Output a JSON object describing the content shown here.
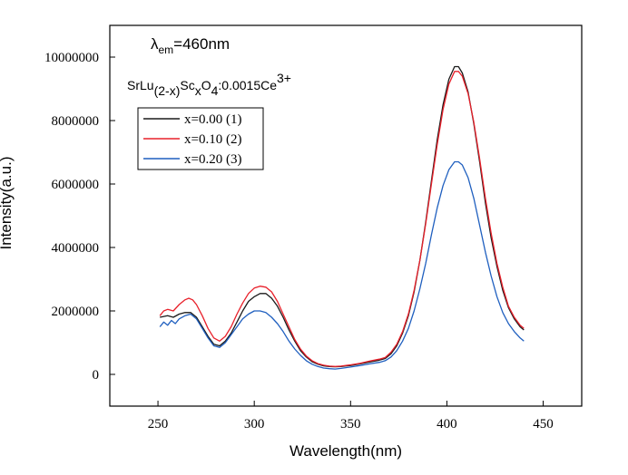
{
  "chart_data": {
    "type": "line",
    "title": "",
    "xlabel": "Wavelength(nm)",
    "ylabel": "Intensity(a.u.)",
    "xlim": [
      225,
      470
    ],
    "ylim": [
      -1000000,
      11000000
    ],
    "x_ticks": [
      250,
      300,
      350,
      400,
      450
    ],
    "y_ticks": [
      0,
      2000000,
      4000000,
      6000000,
      8000000,
      10000000
    ],
    "x_tick_labels": [
      "250",
      "300",
      "350",
      "400",
      "450"
    ],
    "y_tick_labels": [
      "0",
      "2000000",
      "4000000",
      "6000000",
      "8000000",
      "10000000"
    ],
    "grid": false,
    "legend_position": "top-left",
    "annotations": {
      "excitation": {
        "lambda": "λ",
        "sub": "em",
        "rest": "=460nm"
      },
      "formula": {
        "base": "SrLu",
        "sub1": "(2-x)",
        "sc": "Sc",
        "sub2": "x",
        "o": "O",
        "sub3": "4",
        "rest": ":0.0015Ce",
        "sup": "3+"
      }
    },
    "series": [
      {
        "name": "x=0.00 (1)",
        "color": "#1a1a1a",
        "points": [
          [
            251,
            1800000
          ],
          [
            255,
            1850000
          ],
          [
            258,
            1800000
          ],
          [
            261,
            1900000
          ],
          [
            264,
            1950000
          ],
          [
            267,
            1950000
          ],
          [
            270,
            1800000
          ],
          [
            273,
            1500000
          ],
          [
            276,
            1200000
          ],
          [
            279,
            950000
          ],
          [
            282,
            900000
          ],
          [
            285,
            1050000
          ],
          [
            288,
            1300000
          ],
          [
            291,
            1650000
          ],
          [
            294,
            2000000
          ],
          [
            297,
            2300000
          ],
          [
            300,
            2450000
          ],
          [
            303,
            2550000
          ],
          [
            306,
            2550000
          ],
          [
            309,
            2400000
          ],
          [
            312,
            2150000
          ],
          [
            315,
            1800000
          ],
          [
            318,
            1400000
          ],
          [
            321,
            1050000
          ],
          [
            324,
            750000
          ],
          [
            327,
            550000
          ],
          [
            330,
            400000
          ],
          [
            333,
            320000
          ],
          [
            336,
            270000
          ],
          [
            339,
            250000
          ],
          [
            342,
            240000
          ],
          [
            345,
            250000
          ],
          [
            350,
            280000
          ],
          [
            355,
            330000
          ],
          [
            360,
            390000
          ],
          [
            365,
            450000
          ],
          [
            368,
            500000
          ],
          [
            371,
            650000
          ],
          [
            374,
            900000
          ],
          [
            377,
            1300000
          ],
          [
            380,
            1850000
          ],
          [
            383,
            2600000
          ],
          [
            386,
            3600000
          ],
          [
            389,
            4800000
          ],
          [
            392,
            6100000
          ],
          [
            395,
            7400000
          ],
          [
            398,
            8500000
          ],
          [
            401,
            9300000
          ],
          [
            404,
            9700000
          ],
          [
            406,
            9700000
          ],
          [
            408,
            9500000
          ],
          [
            411,
            8900000
          ],
          [
            414,
            7900000
          ],
          [
            417,
            6700000
          ],
          [
            420,
            5400000
          ],
          [
            423,
            4300000
          ],
          [
            426,
            3400000
          ],
          [
            429,
            2650000
          ],
          [
            432,
            2100000
          ],
          [
            435,
            1750000
          ],
          [
            438,
            1500000
          ],
          [
            440,
            1400000
          ]
        ]
      },
      {
        "name": "x=0.10 (2)",
        "color": "#e8202a",
        "points": [
          [
            251,
            1850000
          ],
          [
            253,
            2000000
          ],
          [
            255,
            2050000
          ],
          [
            258,
            2000000
          ],
          [
            261,
            2200000
          ],
          [
            264,
            2350000
          ],
          [
            266,
            2400000
          ],
          [
            268,
            2350000
          ],
          [
            270,
            2200000
          ],
          [
            273,
            1850000
          ],
          [
            276,
            1450000
          ],
          [
            279,
            1150000
          ],
          [
            282,
            1050000
          ],
          [
            285,
            1200000
          ],
          [
            288,
            1500000
          ],
          [
            291,
            1900000
          ],
          [
            294,
            2250000
          ],
          [
            297,
            2550000
          ],
          [
            300,
            2720000
          ],
          [
            303,
            2780000
          ],
          [
            306,
            2750000
          ],
          [
            309,
            2600000
          ],
          [
            312,
            2300000
          ],
          [
            315,
            1900000
          ],
          [
            318,
            1500000
          ],
          [
            321,
            1100000
          ],
          [
            324,
            800000
          ],
          [
            327,
            580000
          ],
          [
            330,
            430000
          ],
          [
            333,
            340000
          ],
          [
            336,
            290000
          ],
          [
            339,
            260000
          ],
          [
            342,
            250000
          ],
          [
            345,
            260000
          ],
          [
            350,
            300000
          ],
          [
            355,
            350000
          ],
          [
            360,
            420000
          ],
          [
            365,
            480000
          ],
          [
            368,
            530000
          ],
          [
            371,
            700000
          ],
          [
            374,
            950000
          ],
          [
            377,
            1350000
          ],
          [
            380,
            1900000
          ],
          [
            383,
            2650000
          ],
          [
            386,
            3600000
          ],
          [
            389,
            4750000
          ],
          [
            392,
            6000000
          ],
          [
            395,
            7250000
          ],
          [
            398,
            8350000
          ],
          [
            401,
            9150000
          ],
          [
            404,
            9550000
          ],
          [
            406,
            9550000
          ],
          [
            408,
            9400000
          ],
          [
            411,
            8850000
          ],
          [
            414,
            7950000
          ],
          [
            417,
            6800000
          ],
          [
            420,
            5550000
          ],
          [
            423,
            4450000
          ],
          [
            426,
            3500000
          ],
          [
            429,
            2750000
          ],
          [
            432,
            2150000
          ],
          [
            435,
            1800000
          ],
          [
            438,
            1550000
          ],
          [
            440,
            1450000
          ]
        ]
      },
      {
        "name": "x=0.20 (3)",
        "color": "#1f5fbf",
        "points": [
          [
            251,
            1500000
          ],
          [
            253,
            1650000
          ],
          [
            255,
            1550000
          ],
          [
            257,
            1700000
          ],
          [
            259,
            1600000
          ],
          [
            261,
            1750000
          ],
          [
            264,
            1850000
          ],
          [
            267,
            1900000
          ],
          [
            270,
            1750000
          ],
          [
            273,
            1450000
          ],
          [
            276,
            1150000
          ],
          [
            279,
            900000
          ],
          [
            282,
            850000
          ],
          [
            285,
            1000000
          ],
          [
            288,
            1250000
          ],
          [
            291,
            1500000
          ],
          [
            294,
            1750000
          ],
          [
            297,
            1900000
          ],
          [
            300,
            2000000
          ],
          [
            303,
            2000000
          ],
          [
            306,
            1950000
          ],
          [
            309,
            1800000
          ],
          [
            312,
            1600000
          ],
          [
            315,
            1350000
          ],
          [
            318,
            1050000
          ],
          [
            321,
            800000
          ],
          [
            324,
            600000
          ],
          [
            327,
            430000
          ],
          [
            330,
            320000
          ],
          [
            333,
            250000
          ],
          [
            336,
            200000
          ],
          [
            339,
            180000
          ],
          [
            342,
            170000
          ],
          [
            345,
            190000
          ],
          [
            350,
            230000
          ],
          [
            355,
            280000
          ],
          [
            360,
            330000
          ],
          [
            365,
            380000
          ],
          [
            368,
            430000
          ],
          [
            371,
            550000
          ],
          [
            374,
            750000
          ],
          [
            377,
            1050000
          ],
          [
            380,
            1450000
          ],
          [
            383,
            2000000
          ],
          [
            386,
            2700000
          ],
          [
            389,
            3500000
          ],
          [
            392,
            4400000
          ],
          [
            395,
            5250000
          ],
          [
            398,
            5950000
          ],
          [
            401,
            6450000
          ],
          [
            404,
            6700000
          ],
          [
            406,
            6700000
          ],
          [
            408,
            6600000
          ],
          [
            411,
            6200000
          ],
          [
            414,
            5550000
          ],
          [
            417,
            4700000
          ],
          [
            420,
            3850000
          ],
          [
            423,
            3100000
          ],
          [
            426,
            2450000
          ],
          [
            429,
            1950000
          ],
          [
            432,
            1600000
          ],
          [
            435,
            1350000
          ],
          [
            438,
            1150000
          ],
          [
            440,
            1050000
          ]
        ]
      }
    ]
  }
}
